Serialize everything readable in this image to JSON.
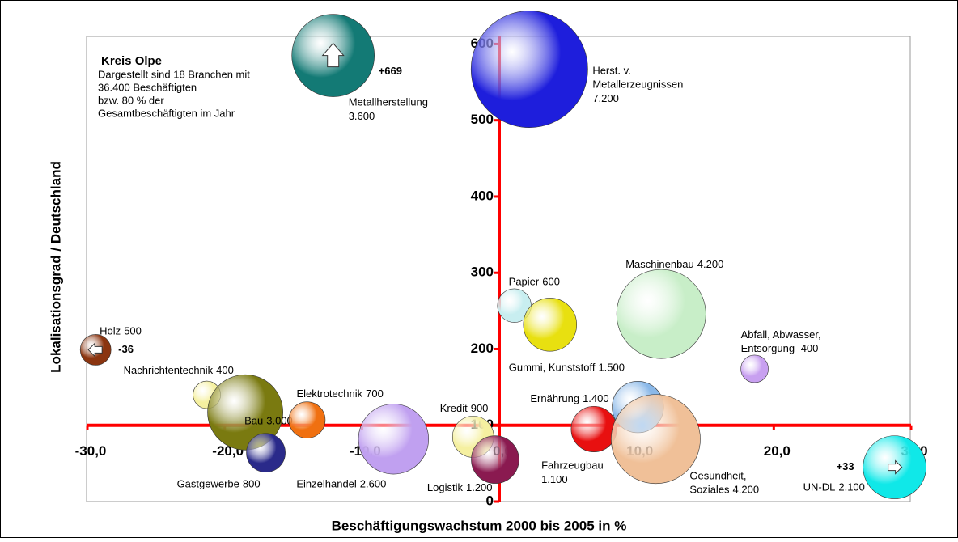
{
  "chart_data": {
    "type": "bubble",
    "xlabel": "Beschäftigungswachstum 2000 bis 2005 in %",
    "ylabel": "Lokalisationsgrad / Deutschland",
    "info": [
      "Kreis Olpe",
      "Dargestellt sind 18 Branchen mit",
      "36.400 Beschäftigten",
      "bzw. 80 % der",
      "Gesamtbeschäftigten im Jahr"
    ],
    "xlim": [
      -30,
      30
    ],
    "ylim": [
      0,
      610
    ],
    "xaxis_at": 100,
    "xticks": [
      {
        "value": -30,
        "label": "-30,0"
      },
      {
        "value": -20,
        "label": "-20,0"
      },
      {
        "value": -10,
        "label": "-10,0"
      },
      {
        "value": 0,
        "label": "0,0"
      },
      {
        "value": 10,
        "label": "10,0"
      },
      {
        "value": 20,
        "label": "20,0"
      },
      {
        "value": 30,
        "label": "30,0"
      }
    ],
    "yticks": [
      0,
      100,
      200,
      300,
      400,
      500,
      600
    ],
    "names": [
      [
        "Metallherstellung"
      ],
      [
        "Herst. v.",
        "Metallerzeugnissen"
      ],
      [
        "Holz"
      ],
      [
        "Nachrichtentechnik"
      ],
      [
        "Bau"
      ],
      [
        "Gastgewerbe"
      ],
      [
        "Elektrotechnik"
      ],
      [
        "Einzelhandel"
      ],
      [
        "Kredit"
      ],
      [
        "Logistik"
      ],
      [
        "Papier"
      ],
      [
        "Gummi, Kunststoff"
      ],
      [
        "Maschinenbau"
      ],
      [
        "Abfall, Abwasser,",
        "Entsorgung "
      ],
      [
        "Ernährung"
      ],
      [
        "Fahrzeugbau"
      ],
      [
        "Gesundheit,",
        "Soziales"
      ],
      [
        "UN-DL"
      ]
    ],
    "x": [
      -12.1,
      2.2,
      -29.4,
      -21.3,
      -18.5,
      -17.0,
      -14.0,
      -7.7,
      -1.9,
      -0.3,
      1.1,
      3.7,
      11.8,
      18.6,
      10.1,
      6.9,
      11.4,
      28.8
    ],
    "values": [
      585,
      567,
      199,
      140,
      117,
      64,
      107,
      82,
      85,
      55,
      257,
      232,
      246,
      174,
      124,
      95,
      82,
      45
    ],
    "sizes": [
      3600,
      7200,
      500,
      400,
      3000,
      800,
      700,
      2600,
      900,
      1200,
      600,
      1500,
      4200,
      400,
      1400,
      1100,
      4200,
      2100
    ],
    "size_labels": [
      "3.600",
      "7.200",
      "500",
      "400",
      "3.000",
      "800",
      "700",
      "2.600",
      "900",
      "1.200",
      "600",
      "1.500",
      "4.200",
      "400",
      "1.400",
      "1.100",
      "4.200",
      "2.100"
    ],
    "colors": [
      "#137a75",
      "#1e1edc",
      "#8b3510",
      "#f5f0a0",
      "#7a7a10",
      "#2a2a8a",
      "#f07010",
      "#c0a0f0",
      "#f5f0a0",
      "#8a1a50",
      "#c8eef0",
      "#e8e010",
      "#c8eec8",
      "#c8a0f0",
      "#8ab8e8",
      "#e81010",
      "#f0c098",
      "#10e8e8"
    ],
    "annotations": [
      {
        "point": 0,
        "text": "+669",
        "arrow": "up"
      },
      {
        "point": 2,
        "text": "-36",
        "arrow": "left"
      },
      {
        "point": 17,
        "text": "+33",
        "arrow": "right"
      }
    ]
  }
}
